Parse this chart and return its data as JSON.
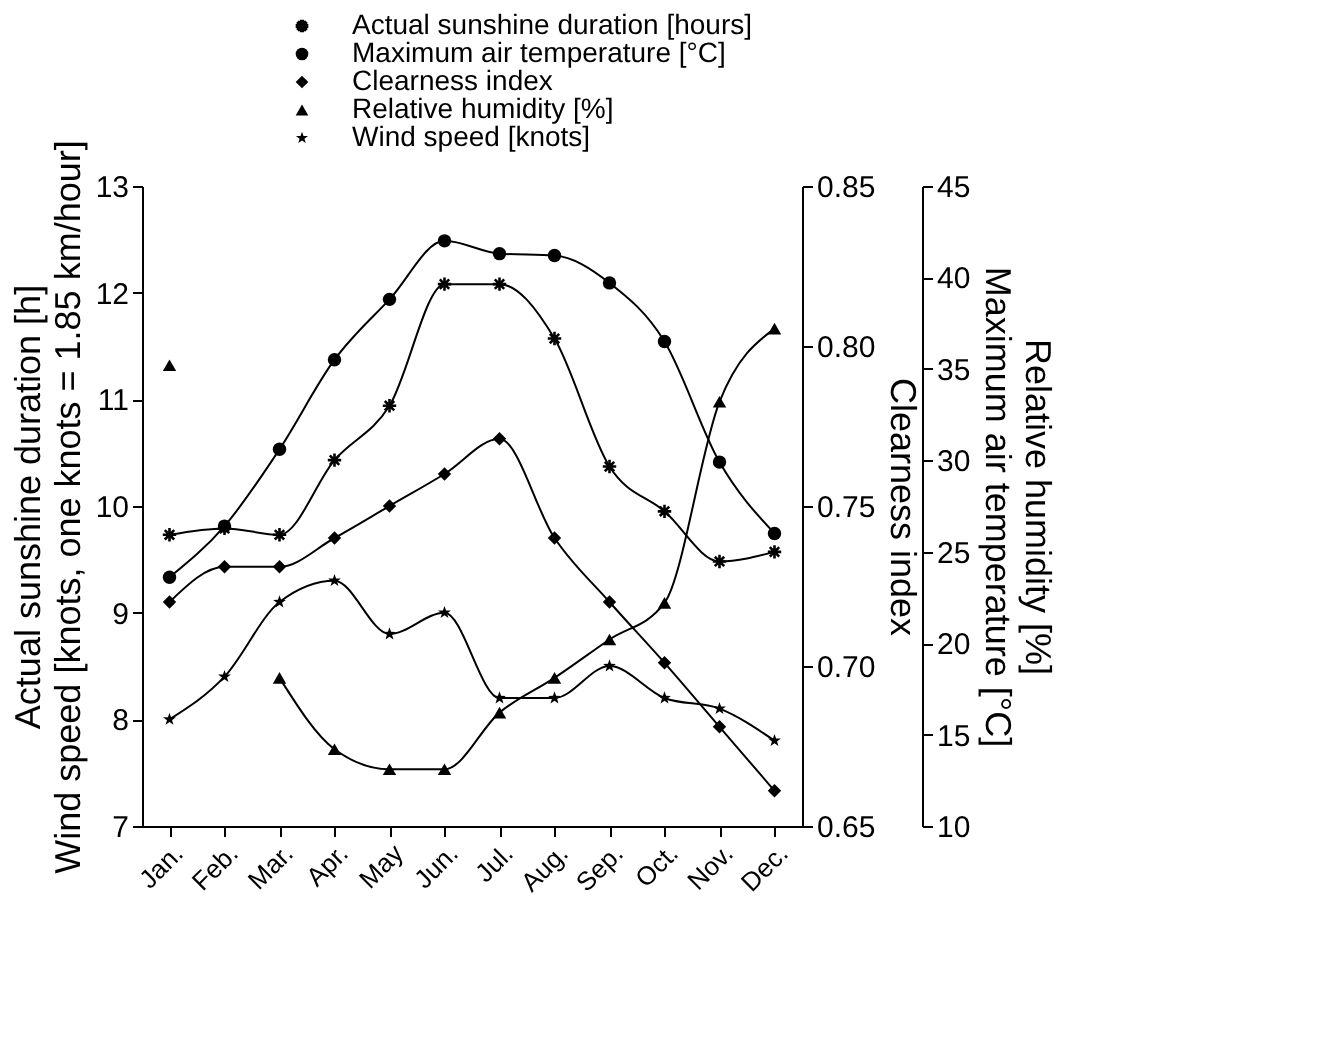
{
  "chart_data": {
    "type": "line",
    "categories": [
      "Jan.",
      "Feb.",
      "Mar.",
      "Apr.",
      "May",
      "Jun.",
      "Jul.",
      "Aug.",
      "Sep.",
      "Oct.",
      "Nov.",
      "Dec."
    ],
    "ylabel": "Actual sunshine duration [h]\nWind speed [knots, one knots = 1.85 km/hour]",
    "y2label": "Clearness index",
    "y3label": "Relative humidity [%]\nMaximum air temperature [°C]",
    "ylim": [
      7,
      13
    ],
    "yticks": [
      7,
      8,
      9,
      10,
      11,
      12,
      13
    ],
    "y2lim": [
      0.65,
      0.85
    ],
    "y2ticks": [
      {
        "value": 0.65,
        "label": "0.65"
      },
      {
        "value": 0.7,
        "label": "0.70"
      },
      {
        "value": 0.75,
        "label": "0.75"
      },
      {
        "value": 0.8,
        "label": "0.80"
      },
      {
        "value": 0.85,
        "label": "0.85"
      }
    ],
    "y3lim": [
      10,
      45
    ],
    "y3ticks": [
      10,
      15,
      20,
      25,
      30,
      35,
      40,
      45
    ],
    "legend": "top",
    "grid": false,
    "line_style": "solid",
    "series": [
      {
        "name": "Actual sunshine duration [hours]",
        "color": "#000000",
        "marker": "cross",
        "axis": "y",
        "values": [
          9.73,
          9.79,
          9.73,
          10.43,
          10.94,
          12.08,
          12.08,
          11.57,
          10.37,
          9.95,
          9.48,
          9.57
        ]
      },
      {
        "name": "Maximum air temperature [°C]",
        "color": "#000000",
        "marker": "circle",
        "axis": "y3",
        "values": [
          23.6,
          26.4,
          30.6,
          35.5,
          38.8,
          42.0,
          41.3,
          41.2,
          39.7,
          36.5,
          29.9,
          26.0
        ]
      },
      {
        "name": "Clearness index",
        "color": "#000000",
        "marker": "diamond",
        "axis": "y2",
        "values": [
          0.72,
          0.731,
          0.731,
          0.74,
          0.75,
          0.76,
          0.771,
          0.74,
          0.72,
          0.701,
          0.681,
          0.661
        ]
      },
      {
        "name": "Relative humidity [%]",
        "color": "#000000",
        "marker": "triangle",
        "axis": "y3",
        "values": [
          35.2,
          null,
          18.1,
          14.2,
          13.1,
          13.1,
          16.2,
          18.1,
          20.2,
          22.2,
          33.2,
          37.2
        ]
      },
      {
        "name": "Wind speed [knots]",
        "color": "#000000",
        "marker": "star",
        "axis": "y",
        "values": [
          8.0,
          8.4,
          9.1,
          9.3,
          8.8,
          9.0,
          8.2,
          8.2,
          8.5,
          8.2,
          8.1,
          7.8
        ]
      }
    ]
  }
}
